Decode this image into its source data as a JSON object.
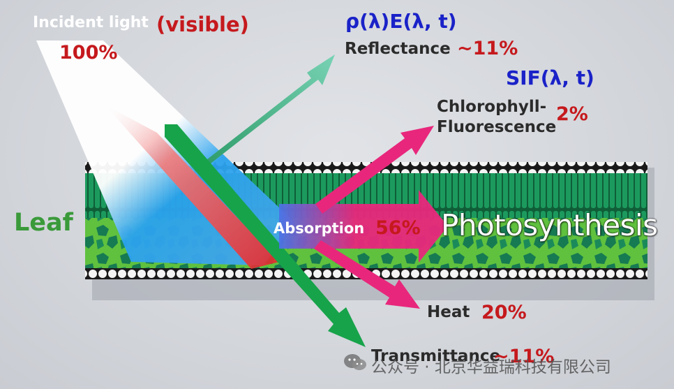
{
  "incident": {
    "label": "Incident light",
    "qualifier": "(visible)",
    "percent": "100%"
  },
  "reflectance": {
    "formula": "ρ(λ)E(λ, t)",
    "label": "Reflectance",
    "percent": "~11%"
  },
  "fluorescence": {
    "formula": "SIF(λ, t)",
    "label_line1": "Chlorophyll-",
    "label_line2": "Fluorescence",
    "percent": "2%"
  },
  "leaf": {
    "label": "Leaf"
  },
  "absorption": {
    "label": "Absorption",
    "percent": "56%"
  },
  "photosynthesis": {
    "label": "Photosynthesis"
  },
  "heat": {
    "label": "Heat",
    "percent": "20%"
  },
  "transmittance": {
    "label": "Transmittance",
    "percent": "~11%"
  },
  "watermark": {
    "text": "公众号 · 北京华益瑞科技有限公司"
  },
  "colors": {
    "reflect_arrow": "#5cc9a4",
    "absorb_arrow": "#e8277c",
    "transmit_arrow": "#17a34a",
    "leaf_green": "#17925a",
    "text_blue": "#1a22c8",
    "text_red": "#c5191d"
  }
}
